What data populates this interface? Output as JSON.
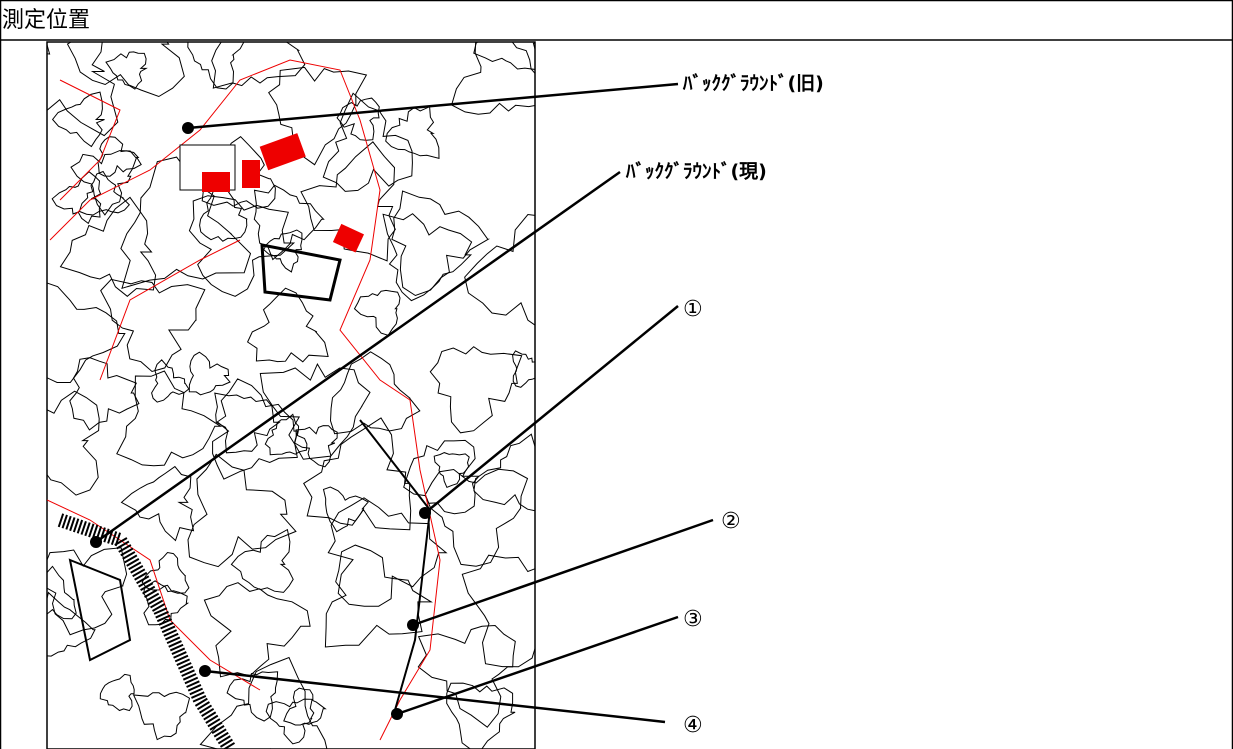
{
  "header": {
    "title": "測定位置"
  },
  "points": [
    {
      "label": "ﾊﾞｯｸｸﾞﾗｳﾝﾄﾞ(旧)"
    },
    {
      "label": "ﾊﾞｯｸｸﾞﾗｳﾝﾄﾞ(現)"
    },
    {
      "label": "①"
    },
    {
      "label": "②"
    },
    {
      "label": "③"
    },
    {
      "label": "④"
    }
  ]
}
